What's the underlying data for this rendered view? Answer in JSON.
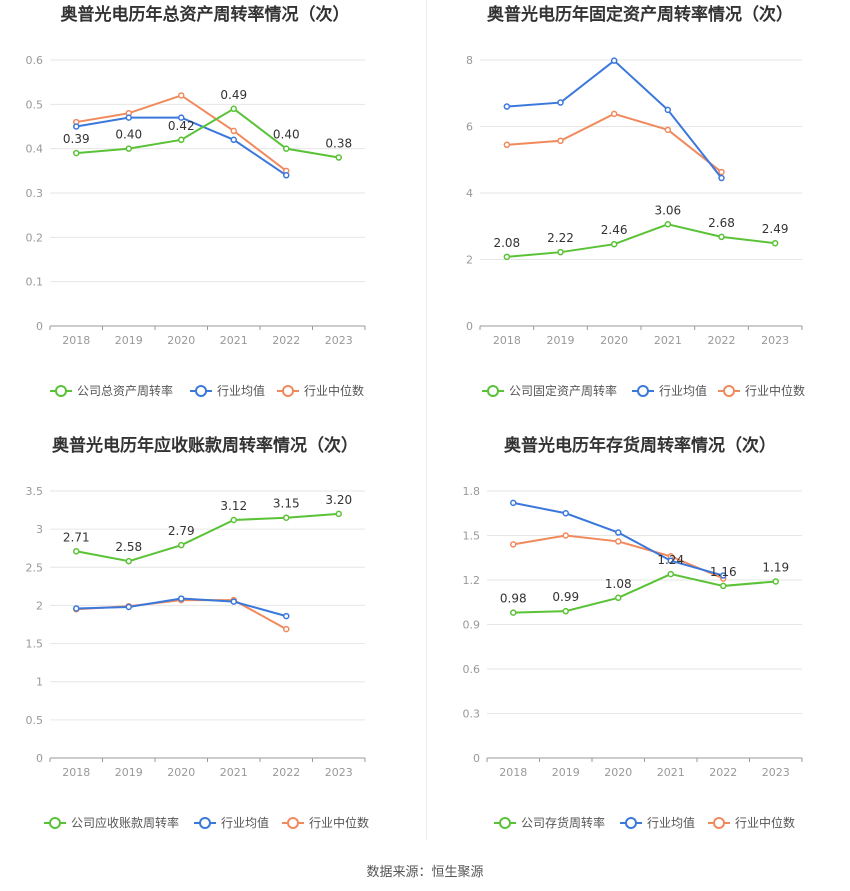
{
  "footer": {
    "source": "数据来源：恒生聚源"
  },
  "colors": {
    "company": "#5ac236",
    "avg": "#3a78dc",
    "median": "#f08a5d",
    "grid": "#e6e6e6",
    "axis": "#999999",
    "tick": "#999999",
    "label": "#333333",
    "title": "#333333"
  },
  "chart_data": [
    {
      "type": "line",
      "title": "奥普光电历年总资产周转率情况（次）",
      "categories": [
        "2018",
        "2019",
        "2020",
        "2021",
        "2022",
        "2023"
      ],
      "ylim": [
        0,
        0.6
      ],
      "yticks": [
        "0",
        "0.1",
        "0.2",
        "0.3",
        "0.4",
        "0.5",
        "0.6"
      ],
      "grid": true,
      "legend_position": "bottom",
      "series": [
        {
          "name": "公司总资产周转率",
          "values": [
            0.39,
            0.4,
            0.42,
            0.49,
            0.4,
            0.38
          ],
          "labels": [
            "0.39",
            "0.40",
            "0.42",
            "0.49",
            "0.40",
            "0.38"
          ]
        },
        {
          "name": "行业均值",
          "values": [
            0.45,
            0.47,
            0.47,
            0.42,
            0.34,
            null
          ]
        },
        {
          "name": "行业中位数",
          "values": [
            0.46,
            0.48,
            0.52,
            0.44,
            0.35,
            null
          ]
        }
      ]
    },
    {
      "type": "line",
      "title": "奥普光电历年固定资产周转率情况（次）",
      "categories": [
        "2018",
        "2019",
        "2020",
        "2021",
        "2022",
        "2023"
      ],
      "ylim": [
        0,
        8
      ],
      "yticks": [
        "0",
        "2",
        "4",
        "6",
        "8"
      ],
      "grid": true,
      "legend_position": "bottom",
      "series": [
        {
          "name": "公司固定资产周转率",
          "values": [
            2.08,
            2.22,
            2.46,
            3.06,
            2.68,
            2.49
          ],
          "labels": [
            "2.08",
            "2.22",
            "2.46",
            "3.06",
            "2.68",
            "2.49"
          ]
        },
        {
          "name": "行业均值",
          "values": [
            6.6,
            6.72,
            7.98,
            6.5,
            4.45,
            null
          ]
        },
        {
          "name": "行业中位数",
          "values": [
            5.45,
            5.57,
            6.38,
            5.9,
            4.63,
            null
          ]
        }
      ]
    },
    {
      "type": "line",
      "title": "奥普光电历年应收账款周转率情况（次）",
      "categories": [
        "2018",
        "2019",
        "2020",
        "2021",
        "2022",
        "2023"
      ],
      "ylim": [
        0,
        3.5
      ],
      "yticks": [
        "0",
        "0.5",
        "1",
        "1.5",
        "2",
        "2.5",
        "3",
        "3.5"
      ],
      "grid": true,
      "legend_position": "bottom",
      "series": [
        {
          "name": "公司应收账款周转率",
          "values": [
            2.71,
            2.58,
            2.79,
            3.12,
            3.15,
            3.2
          ],
          "labels": [
            "2.71",
            "2.58",
            "2.79",
            "3.12",
            "3.15",
            "3.20"
          ]
        },
        {
          "name": "行业均值",
          "values": [
            1.96,
            1.98,
            2.09,
            2.05,
            1.86,
            null
          ]
        },
        {
          "name": "行业中位数",
          "values": [
            1.95,
            1.99,
            2.07,
            2.07,
            1.69,
            null
          ]
        }
      ]
    },
    {
      "type": "line",
      "title": "奥普光电历年存货周转率情况（次）",
      "categories": [
        "2018",
        "2019",
        "2020",
        "2021",
        "2022",
        "2023"
      ],
      "ylim": [
        0,
        1.8
      ],
      "yticks": [
        "0",
        "0.3",
        "0.6",
        "0.9",
        "1.2",
        "1.5",
        "1.8"
      ],
      "grid": true,
      "legend_position": "bottom",
      "series": [
        {
          "name": "公司存货周转率",
          "values": [
            0.98,
            0.99,
            1.08,
            1.24,
            1.16,
            1.19
          ],
          "labels": [
            "0.98",
            "0.99",
            "1.08",
            "1.24",
            "1.16",
            "1.19"
          ]
        },
        {
          "name": "行业均值",
          "values": [
            1.72,
            1.65,
            1.52,
            1.33,
            1.23,
            null
          ]
        },
        {
          "name": "行业中位数",
          "values": [
            1.44,
            1.5,
            1.46,
            1.36,
            1.21,
            null
          ]
        }
      ]
    }
  ]
}
